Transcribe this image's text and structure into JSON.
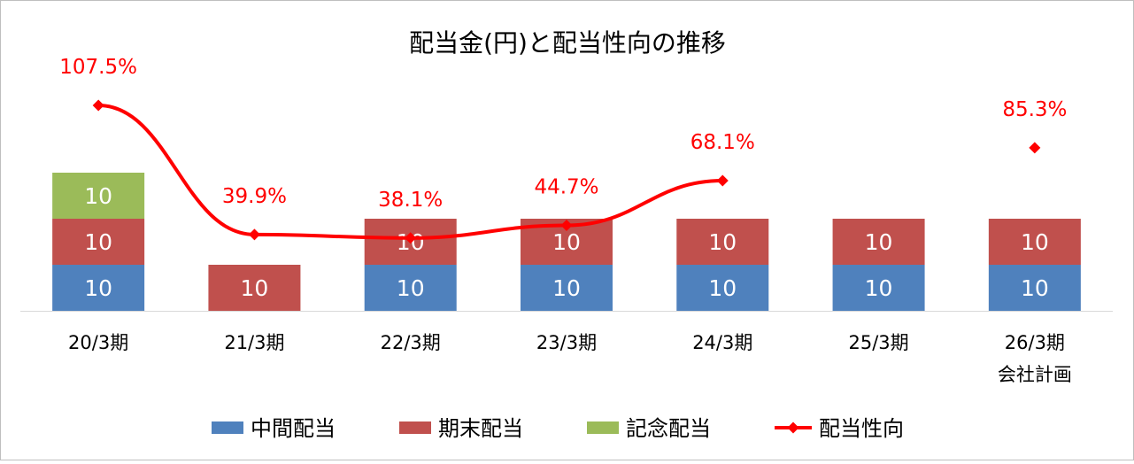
{
  "chart_data": {
    "type": "bar",
    "title": "配当金(円)と配当性向の推移",
    "categories": [
      [
        "20/3期"
      ],
      [
        "21/3期"
      ],
      [
        "22/3期"
      ],
      [
        "23/3期"
      ],
      [
        "24/3期"
      ],
      [
        "25/3期"
      ],
      [
        "26/3期",
        "会社計画"
      ]
    ],
    "stack_order": [
      "中間配当",
      "期末配当",
      "記念配当"
    ],
    "series": [
      {
        "name": "中間配当",
        "kind": "bar",
        "color": "#4f81bd",
        "values": [
          10,
          0,
          10,
          10,
          10,
          10,
          10
        ]
      },
      {
        "name": "期末配当",
        "kind": "bar",
        "color": "#c0504d",
        "values": [
          10,
          10,
          10,
          10,
          10,
          10,
          10
        ]
      },
      {
        "name": "記念配当",
        "kind": "bar",
        "color": "#9bbb59",
        "values": [
          10,
          0,
          0,
          0,
          0,
          0,
          0
        ]
      },
      {
        "name": "配当性向",
        "kind": "line",
        "color": "#ff0000",
        "unit": "%",
        "values": [
          107.5,
          39.9,
          38.1,
          44.7,
          68.1,
          null,
          85.3
        ],
        "labels": [
          "107.5%",
          "39.9%",
          "38.1%",
          "44.7%",
          "68.1%",
          null,
          "85.3%"
        ]
      }
    ],
    "bar_ylim": [
      0,
      30
    ],
    "line_ylim": [
      0,
      120
    ],
    "grid": false,
    "legend_position": "bottom",
    "legend": [
      "中間配当",
      "期末配当",
      "記念配当",
      "配当性向"
    ]
  }
}
